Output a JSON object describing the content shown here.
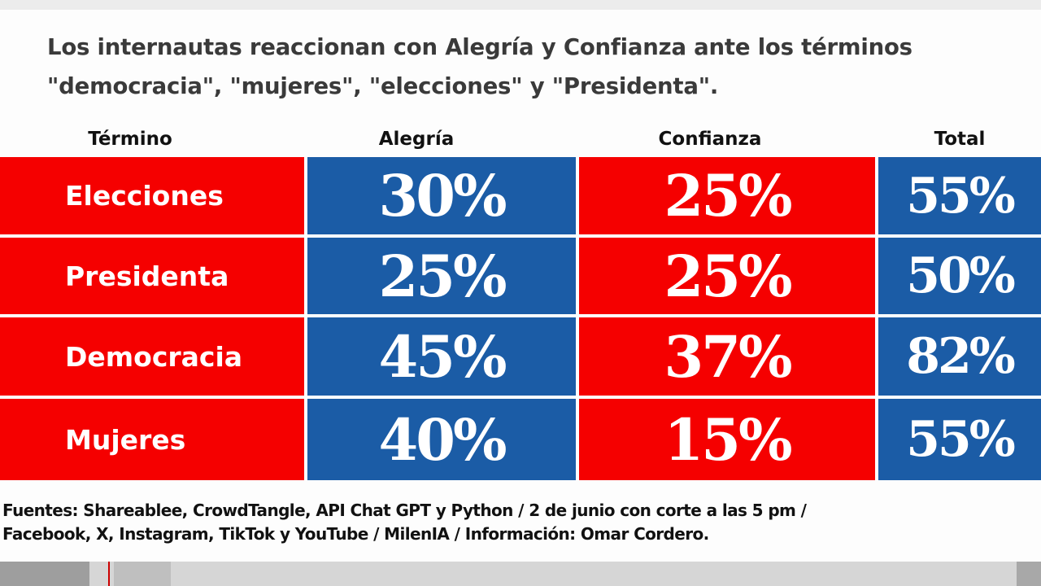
{
  "title": {
    "line1": "Los internautas reaccionan con Alegría y Confianza ante los términos",
    "line2": "\"democracia\", \"mujeres\", \"elecciones\" y \"Presidenta\"."
  },
  "colors": {
    "red": "#f50000",
    "blue": "#1b5ca6"
  },
  "chart_data": {
    "type": "table",
    "columns": [
      "Término",
      "Alegría",
      "Confianza",
      "Total"
    ],
    "rows": [
      {
        "term": "Elecciones",
        "alegria": "30%",
        "confianza": "25%",
        "total": "55%"
      },
      {
        "term": "Presidenta",
        "alegria": "25%",
        "confianza": "25%",
        "total": "50%"
      },
      {
        "term": "Democracia",
        "alegria": "45%",
        "confianza": "37%",
        "total": "82%"
      },
      {
        "term": "Mujeres",
        "alegria": "40%",
        "confianza": "15%",
        "total": "55%"
      }
    ]
  },
  "footer": {
    "line1": "Fuentes: Shareablee, CrowdTangle, API Chat GPT y Python / 2 de junio con corte a las 5 pm /",
    "line2": "Facebook, X, Instagram, TikTok y YouTube / MilenIA / Información: Omar Cordero."
  }
}
